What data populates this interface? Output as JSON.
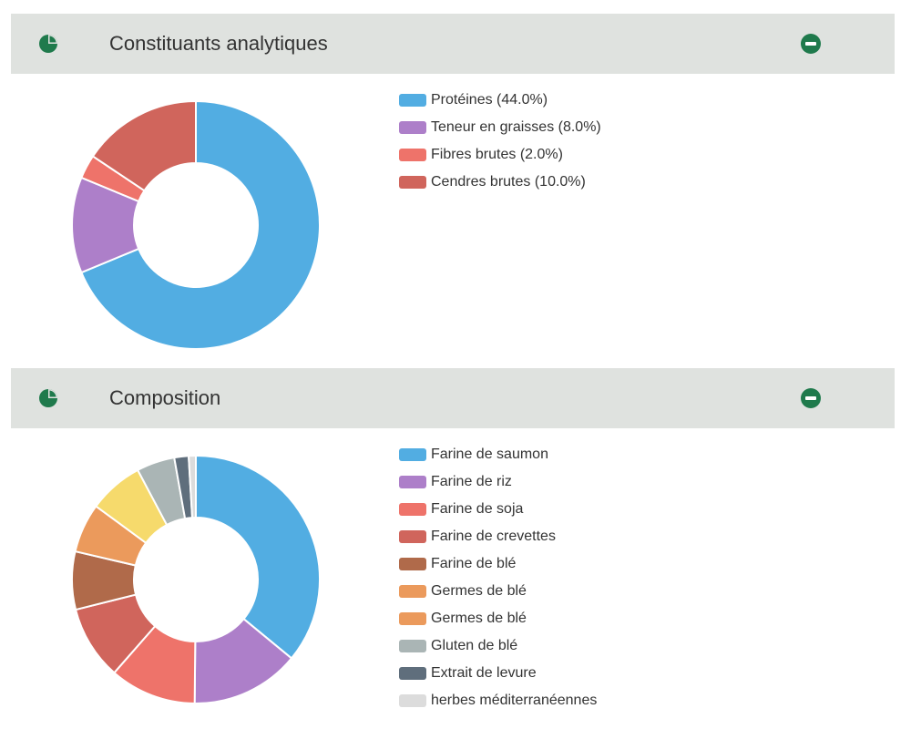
{
  "colors": {
    "header_bg": "#dfe2df",
    "accent": "#1f7a4c"
  },
  "panels": [
    {
      "title": "Constituants analytiques",
      "icon": "pie-chart-icon",
      "collapse_icon": "minus-circle-icon",
      "chart_data": {
        "type": "pie",
        "variant": "donut",
        "labels": [
          "Protéines (44.0%)",
          "Teneur en graisses (8.0%)",
          "Fibres brutes (2.0%)",
          "Cendres brutes (10.0%)"
        ],
        "categories": [
          "Protéines",
          "Teneur en graisses",
          "Fibres brutes",
          "Cendres brutes"
        ],
        "values": [
          44.0,
          8.0,
          2.0,
          10.0
        ],
        "colors": [
          "#52ade2",
          "#ad7fc9",
          "#ee736a",
          "#d0655c"
        ],
        "legend_position": "right"
      }
    },
    {
      "title": "Composition",
      "icon": "pie-chart-icon",
      "collapse_icon": "minus-circle-icon",
      "chart_data": {
        "type": "pie",
        "variant": "donut",
        "labels": [
          "Farine de saumon",
          "Farine de riz",
          "Farine de soja",
          "Farine de crevettes",
          "Farine de blé",
          "Germes de blé",
          "Germes de blé",
          "Gluten de blé",
          "Extrait de levure",
          "herbes méditerranéennes"
        ],
        "values": [
          34.7,
          13.7,
          10.9,
          9.3,
          7.3,
          6.2,
          6.9,
          4.8,
          1.8,
          0.9
        ],
        "colors": [
          "#52ade2",
          "#ad7fc9",
          "#ee736a",
          "#d0655c",
          "#b06a4a",
          "#eb9a5c",
          "#f6da6c",
          "#aab5b5",
          "#5f6e7c",
          "#dcdcdc"
        ],
        "legend_colors": [
          "#52ade2",
          "#ad7fc9",
          "#ee736a",
          "#d0655c",
          "#b06a4a",
          "#eb9a5c",
          "#eb9a5c",
          "#aab5b5",
          "#5f6e7c",
          "#dcdcdc"
        ],
        "legend_position": "right"
      }
    }
  ]
}
